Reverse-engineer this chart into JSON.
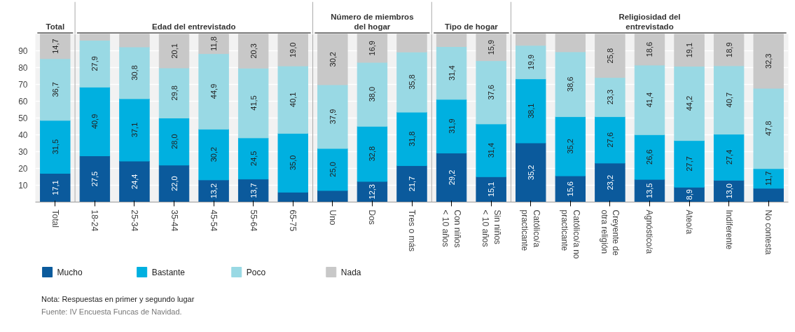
{
  "chart_data": {
    "type": "bar",
    "stacked": true,
    "categories": [
      "Total",
      "18-24",
      "25-34",
      "35-44",
      "45-54",
      "55-64",
      "65-75",
      "Uno",
      "Dos",
      "Tres o más",
      "Con niños < 10 años",
      "Sin niños < 10 años",
      "Católico/a practicante",
      "Católico/a no practicante",
      "Creyente de otra religión",
      "Agnóstico/a",
      "Ateo/a",
      "Indiferente",
      "No contesta"
    ],
    "series": [
      {
        "name": "Mucho",
        "color": "#0b5a9c",
        "values": [
          17.1,
          27.5,
          24.4,
          22.0,
          13.2,
          13.7,
          5.9,
          6.9,
          12.3,
          21.7,
          29.2,
          15.1,
          35.2,
          15.6,
          23.2,
          13.5,
          8.9,
          13.0,
          8.2
        ],
        "value_labels": [
          "17,1",
          "27,5",
          "24,4",
          "22,0",
          "13,2",
          "13,7",
          null,
          null,
          "12,3",
          "21,7",
          "29,2",
          "15,1",
          "35,2",
          "15,6",
          "23,2",
          "13,5",
          "8,9",
          "13,0",
          null
        ]
      },
      {
        "name": "Bastante",
        "color": "#00b0e0",
        "values": [
          31.5,
          40.9,
          37.1,
          28.0,
          30.2,
          24.5,
          35.0,
          25.0,
          32.8,
          31.8,
          31.9,
          31.4,
          38.1,
          35.2,
          27.6,
          26.6,
          27.7,
          27.4,
          11.7
        ],
        "value_labels": [
          "31,5",
          "40,9",
          "37,1",
          "28,0",
          "30,2",
          "24,5",
          "35,0",
          "25,0",
          "32,8",
          "31,8",
          "31,9",
          "31,4",
          "38,1",
          "35,2",
          "27,6",
          "26,6",
          "27,7",
          "27,4",
          "11,7"
        ]
      },
      {
        "name": "Poco",
        "color": "#99d9e4",
        "values": [
          36.7,
          27.9,
          30.8,
          29.8,
          44.9,
          41.5,
          40.1,
          37.9,
          38.0,
          35.8,
          31.4,
          37.6,
          19.9,
          38.6,
          23.3,
          41.4,
          44.2,
          40.7,
          47.8
        ],
        "value_labels": [
          "36,7",
          "27,9",
          "30,8",
          "29,8",
          "44,9",
          "41,5",
          "40,1",
          "37,9",
          "38,0",
          "35,8",
          "31,4",
          "37,6",
          "19,9",
          "38,6",
          "23,3",
          "41,4",
          "44,2",
          "40,7",
          "47,8"
        ]
      },
      {
        "name": "Nada",
        "color": "#c8c8c8",
        "values": [
          14.7,
          3.7,
          7.7,
          20.1,
          11.8,
          20.3,
          19.0,
          30.2,
          16.9,
          10.7,
          7.5,
          15.9,
          6.8,
          10.6,
          25.8,
          18.6,
          19.1,
          18.9,
          32.3
        ],
        "value_labels": [
          "14,7",
          null,
          null,
          "20,1",
          "11,8",
          "20,3",
          "19,0",
          "30,2",
          "16,9",
          null,
          null,
          "15,9",
          null,
          null,
          "25,8",
          "18,6",
          "19,1",
          "18,9",
          "32,3"
        ]
      }
    ],
    "ylim": [
      0,
      100
    ],
    "yticks": [
      10,
      20,
      30,
      40,
      50,
      60,
      70,
      80,
      90
    ],
    "grid": "y",
    "legend": "bottom",
    "annotations": [
      "Total",
      "Edad del entrevistado",
      "Número de miembros del hogar",
      "Tipo de hogar",
      "Religiosidad del entrevistado",
      "Nota: Respuestas en primer y segundo lugar",
      "Fuente: IV Encuesta Funcas de Navidad."
    ]
  }
}
